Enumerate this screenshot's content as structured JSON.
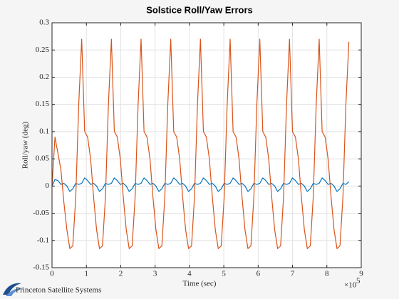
{
  "chart_data": {
    "type": "line",
    "title": "Solstice Roll/Yaw Errors",
    "xlabel": "Time (sec)",
    "ylabel": "Roll/yaw (deg)",
    "x_exponent_base": "×10",
    "x_exponent": "5",
    "footer_text": "Princeton Satellite Systems",
    "grid": true,
    "xlim": [
      0,
      900000
    ],
    "ylim": [
      -0.15,
      0.3
    ],
    "xticks": [
      0,
      {
        "value": 100000,
        "label": "1"
      },
      {
        "value": 200000,
        "label": "2"
      },
      {
        "value": 300000,
        "label": "3"
      },
      {
        "value": 400000,
        "label": "4"
      },
      {
        "value": 500000,
        "label": "5"
      },
      {
        "value": 600000,
        "label": "6"
      },
      {
        "value": 700000,
        "label": "7"
      },
      {
        "value": 800000,
        "label": "8"
      },
      {
        "value": 900000,
        "label": "9"
      }
    ],
    "yticks": [
      -0.15,
      -0.1,
      -0.05,
      0,
      0.05,
      0.1,
      0.15,
      0.2,
      0.25,
      0.3
    ],
    "x": [
      0,
      8640,
      17280,
      25920,
      34560,
      43200,
      51840,
      60480,
      69120,
      77760,
      86400,
      95040,
      103680,
      112320,
      120960,
      129600,
      138240,
      146880,
      155520,
      164160,
      172800,
      181440,
      190080,
      198720,
      207360,
      216000,
      224640,
      233280,
      241920,
      250560,
      259200,
      267840,
      276480,
      285120,
      293760,
      302400,
      311040,
      319680,
      328320,
      336960,
      345600,
      354240,
      362880,
      371520,
      380160,
      388800,
      397440,
      406080,
      414720,
      423360,
      432000,
      440640,
      449280,
      457920,
      466560,
      475200,
      483840,
      492480,
      501120,
      509760,
      518400,
      527040,
      535680,
      544320,
      552960,
      561600,
      570240,
      578880,
      587520,
      596160,
      604800,
      613440,
      622080,
      630720,
      639360,
      648000,
      656640,
      665280,
      673920,
      682560,
      691200,
      699840,
      708480,
      717120,
      725760,
      734400,
      743040,
      751680,
      760320,
      768960,
      777600,
      786240,
      794880,
      803520,
      812160,
      820800,
      829440,
      838080,
      846720,
      855360,
      864000
    ],
    "series": [
      {
        "color": "#0072bd",
        "values": [
          0,
          0.012,
          0.01,
          0.003,
          0.005,
          0,
          -0.01,
          -0.005,
          0.005,
          0.003,
          0.005,
          0.015,
          0.01,
          0.003,
          0.005,
          0,
          -0.01,
          -0.005,
          0.005,
          0.003,
          0.005,
          0.015,
          0.01,
          0.003,
          0.005,
          0,
          -0.01,
          -0.005,
          0.005,
          0.003,
          0.005,
          0.015,
          0.01,
          0.003,
          0.005,
          0,
          -0.01,
          -0.005,
          0.005,
          0.003,
          0.005,
          0.015,
          0.01,
          0.003,
          0.005,
          0,
          -0.01,
          -0.005,
          0.005,
          0.003,
          0.005,
          0.015,
          0.01,
          0.003,
          0.005,
          0,
          -0.01,
          -0.005,
          0.005,
          0.003,
          0.005,
          0.015,
          0.01,
          0.003,
          0.005,
          0,
          -0.01,
          -0.005,
          0.005,
          0.003,
          0.005,
          0.015,
          0.01,
          0.003,
          0.005,
          0,
          -0.01,
          -0.005,
          0.005,
          0.003,
          0.005,
          0.015,
          0.01,
          0.003,
          0.005,
          0,
          -0.01,
          -0.005,
          0.005,
          0.003,
          0.005,
          0.015,
          0.01,
          0.003,
          0.005,
          0,
          -0.01,
          -0.005,
          0.005,
          0.003,
          0.008
        ]
      },
      {
        "color": "#d95319",
        "values": [
          0,
          0.09,
          0.06,
          0.03,
          -0.03,
          -0.08,
          -0.115,
          -0.11,
          -0.02,
          0.15,
          0.27,
          0.1,
          0.09,
          0.05,
          -0.02,
          -0.08,
          -0.115,
          -0.11,
          -0.02,
          0.15,
          0.27,
          0.1,
          0.09,
          0.05,
          -0.02,
          -0.08,
          -0.115,
          -0.11,
          -0.02,
          0.15,
          0.27,
          0.1,
          0.09,
          0.05,
          -0.02,
          -0.08,
          -0.115,
          -0.11,
          -0.02,
          0.15,
          0.27,
          0.1,
          0.09,
          0.05,
          -0.02,
          -0.08,
          -0.115,
          -0.11,
          -0.02,
          0.15,
          0.27,
          0.1,
          0.09,
          0.05,
          -0.02,
          -0.08,
          -0.115,
          -0.11,
          -0.02,
          0.15,
          0.27,
          0.1,
          0.09,
          0.05,
          -0.02,
          -0.08,
          -0.115,
          -0.11,
          -0.02,
          0.15,
          0.27,
          0.1,
          0.09,
          0.05,
          -0.02,
          -0.08,
          -0.115,
          -0.11,
          -0.02,
          0.15,
          0.27,
          0.1,
          0.09,
          0.05,
          -0.02,
          -0.08,
          -0.115,
          -0.11,
          -0.02,
          0.15,
          0.27,
          0.1,
          0.09,
          0.05,
          -0.02,
          -0.08,
          -0.115,
          -0.11,
          -0.02,
          0.15,
          0.265
        ]
      }
    ]
  }
}
